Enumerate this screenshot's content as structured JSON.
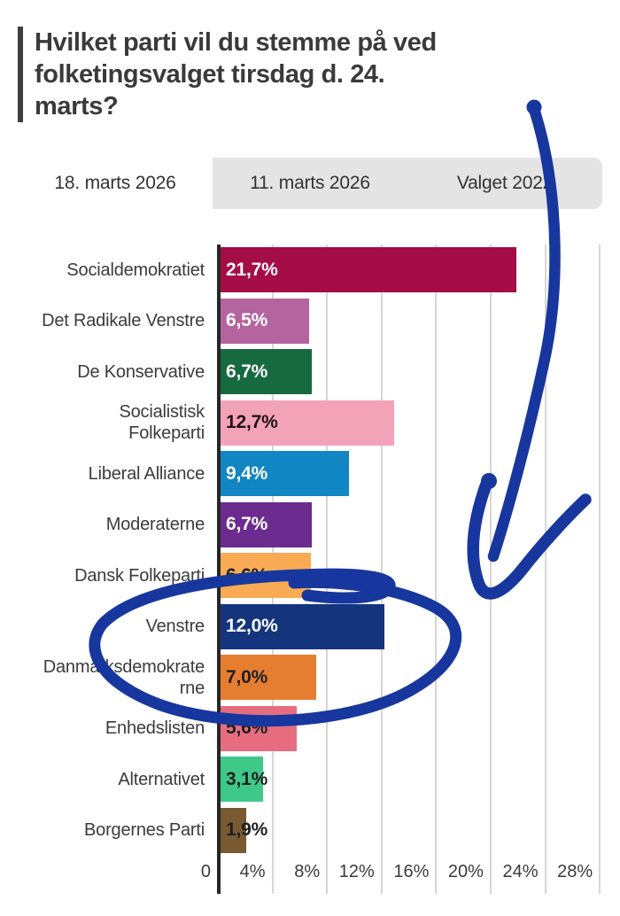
{
  "title": {
    "full": "Hvilket parti vil du stemme på ved folketingsvalget tirsdag d. 24. marts?",
    "lines": [
      "Hvilket parti vil du stemme på ved",
      "folketingsvalget tirsdag d. 24.",
      "marts?"
    ]
  },
  "tabs": {
    "items": [
      {
        "label": "18. marts 2026",
        "active": true
      },
      {
        "label": "11. marts 2026",
        "active": false
      },
      {
        "label": "Valget 2022",
        "active": false
      }
    ]
  },
  "chart_data": {
    "type": "bar",
    "orientation": "horizontal",
    "title": "Hvilket parti vil du stemme på ved folketingsvalget tirsdag d. 24. marts?",
    "categories": [
      "Socialdemokratiet",
      "Det Radikale Venstre",
      "De Konservative",
      "Socialistisk Folkeparti",
      "Liberal Alliance",
      "Moderaterne",
      "Dansk Folkeparti",
      "Venstre",
      "Danmarksdemokraterne",
      "Enhedslisten",
      "Alternativet",
      "Borgernes Parti"
    ],
    "category_lines": [
      [
        "Socialdemokratiet"
      ],
      [
        "Det Radikale Venstre"
      ],
      [
        "De Konservative"
      ],
      [
        "Socialistisk",
        "Folkeparti"
      ],
      [
        "Liberal Alliance"
      ],
      [
        "Moderaterne"
      ],
      [
        "Dansk Folkeparti"
      ],
      [
        "Venstre"
      ],
      [
        "Danmarksdemokrate",
        "rne"
      ],
      [
        "Enhedslisten"
      ],
      [
        "Alternativet"
      ],
      [
        "Borgernes Parti"
      ]
    ],
    "values": [
      21.7,
      6.5,
      6.7,
      12.7,
      9.4,
      6.7,
      6.6,
      12.0,
      7.0,
      5.6,
      3.1,
      1.9
    ],
    "value_labels": [
      "21,7%",
      "6,5%",
      "6,7%",
      "12,7%",
      "9,4%",
      "6,7%",
      "6,6%",
      "12,0%",
      "7,0%",
      "5,6%",
      "3,1%",
      "1,9%"
    ],
    "bar_colors": [
      "#A50D47",
      "#B4649E",
      "#17693F",
      "#F3A3B8",
      "#1186C2",
      "#6C2B8F",
      "#F8AB54",
      "#14357E",
      "#E67E31",
      "#E66D7F",
      "#3EC98B",
      "#7A5A32"
    ],
    "value_label_colors": [
      "#FFFFFF",
      "#FFFFFF",
      "#FFFFFF",
      "#221019",
      "#FFFFFF",
      "#FFFFFF",
      "#1F1F1F",
      "#FFFFFF",
      "#1F1F1F",
      "#1F1F1F",
      "#1F1F1F",
      "#1F1F1F"
    ],
    "x_ticks": [
      {
        "value": 0,
        "label": "0"
      },
      {
        "value": 4,
        "label": "4%"
      },
      {
        "value": 8,
        "label": "8%"
      },
      {
        "value": 12,
        "label": "12%"
      },
      {
        "value": 16,
        "label": "16%"
      },
      {
        "value": 20,
        "label": "20%"
      },
      {
        "value": 24,
        "label": "24%"
      },
      {
        "value": 28,
        "label": "28%"
      }
    ],
    "xlim": [
      0,
      29.55
    ],
    "grid": true,
    "legend": "none"
  },
  "annotation": {
    "color": "#17379E",
    "shapes": [
      "curved-arrow-pointing-down",
      "circle-around-venstre-row"
    ],
    "target": "Venstre"
  },
  "colors": {
    "background": "#FFFFFF",
    "title_text": "#3A3A3A",
    "tab_bar_background": "#E4E4E4",
    "active_tab_background": "#FFFFFF",
    "gridline": "#D6D6D6",
    "axis_line": "#262626",
    "label_text": "#3B3B3B",
    "annotation_blue": "#17379E"
  }
}
